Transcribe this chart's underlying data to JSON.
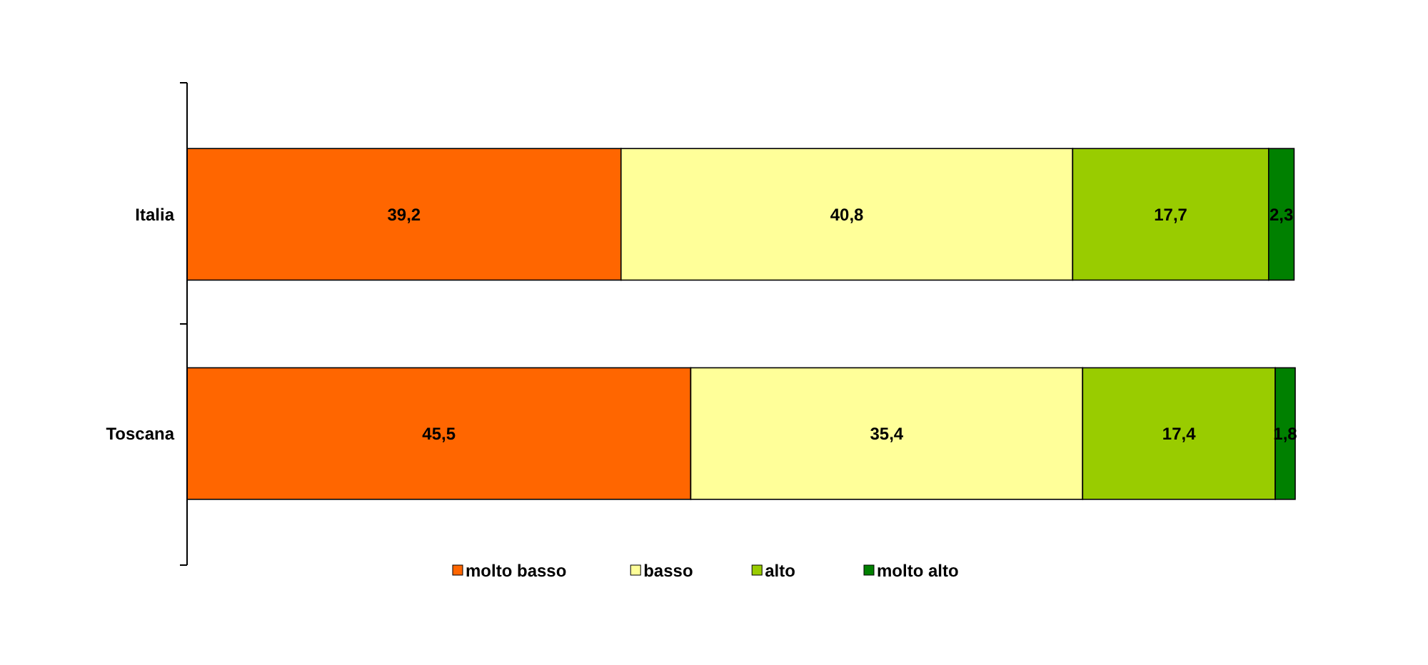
{
  "chart_data": {
    "type": "bar",
    "orientation": "horizontal",
    "stacked": true,
    "categories": [
      "Italia",
      "Toscana"
    ],
    "legend": "bottom",
    "series": [
      {
        "name": "molto basso",
        "color": "#ff6600",
        "values": [
          39.2,
          45.5
        ],
        "value_labels": [
          "39,2",
          "45,5"
        ]
      },
      {
        "name": "basso",
        "color": "#ffff99",
        "values": [
          40.8,
          35.4
        ],
        "value_labels": [
          "40,8",
          "35,4"
        ]
      },
      {
        "name": "alto",
        "color": "#99cc00",
        "values": [
          17.7,
          17.4
        ],
        "value_labels": [
          "17,7",
          "17,4"
        ]
      },
      {
        "name": "molto alto",
        "color": "#008000",
        "values": [
          2.3,
          1.8
        ],
        "value_labels": [
          "2,3",
          "1,8"
        ]
      }
    ]
  }
}
